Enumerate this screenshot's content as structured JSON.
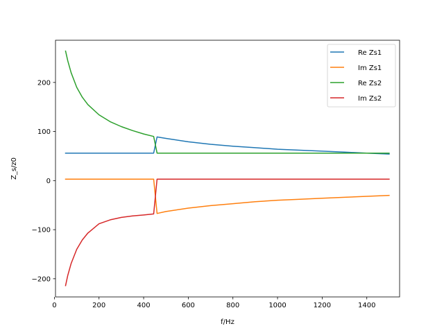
{
  "chart_data": {
    "type": "line",
    "xlabel": "f/Hz",
    "ylabel": "Z_s/z0",
    "xlim": [
      5,
      1547
    ],
    "ylim": [
      -237,
      286
    ],
    "xticks": [
      0,
      200,
      400,
      600,
      800,
      1000,
      1200,
      1400
    ],
    "yticks": [
      -200,
      -100,
      0,
      100,
      200
    ],
    "xtick_labels": [
      "0",
      "200",
      "400",
      "600",
      "800",
      "1000",
      "1200",
      "1400"
    ],
    "ytick_labels": [
      "−200",
      "−100",
      "0",
      "100",
      "200"
    ],
    "legend_position": "upper right",
    "grid": false,
    "series": [
      {
        "name": "Re Zs1",
        "color": "#1f77b4",
        "x": [
          50,
          100,
          200,
          300,
          400,
          445,
          460,
          500,
          600,
          700,
          800,
          900,
          1000,
          1100,
          1200,
          1300,
          1400,
          1500
        ],
        "y": [
          56,
          56,
          56,
          56,
          56,
          56,
          89,
          86,
          79,
          74,
          70,
          67,
          64,
          62,
          60,
          58,
          56,
          54
        ]
      },
      {
        "name": "Im Zs1",
        "color": "#ff7f0e",
        "x": [
          50,
          100,
          200,
          300,
          400,
          445,
          460,
          500,
          600,
          700,
          800,
          900,
          1000,
          1100,
          1200,
          1300,
          1400,
          1500
        ],
        "y": [
          3,
          3,
          3,
          3,
          3,
          3,
          -67,
          -63,
          -56,
          -51,
          -47,
          -43,
          -40,
          -38,
          -36,
          -34,
          -32,
          -30
        ]
      },
      {
        "name": "Re Zs2",
        "color": "#2ca02c",
        "x": [
          50,
          60,
          75,
          100,
          125,
          150,
          200,
          250,
          300,
          350,
          400,
          445,
          460,
          600,
          800,
          1000,
          1200,
          1400,
          1500
        ],
        "y": [
          264,
          244,
          220,
          190,
          170,
          155,
          134,
          120,
          110,
          102,
          95,
          90,
          56,
          56,
          56,
          56,
          56,
          56,
          56
        ]
      },
      {
        "name": "Im Zs2",
        "color": "#d62728",
        "x": [
          50,
          60,
          75,
          100,
          125,
          150,
          200,
          250,
          300,
          350,
          400,
          445,
          460,
          600,
          800,
          1000,
          1200,
          1400,
          1500
        ],
        "y": [
          -214,
          -193,
          -169,
          -140,
          -121,
          -107,
          -88,
          -80,
          -75,
          -72,
          -70,
          -68,
          3,
          3,
          3,
          3,
          3,
          3,
          3
        ]
      }
    ]
  }
}
